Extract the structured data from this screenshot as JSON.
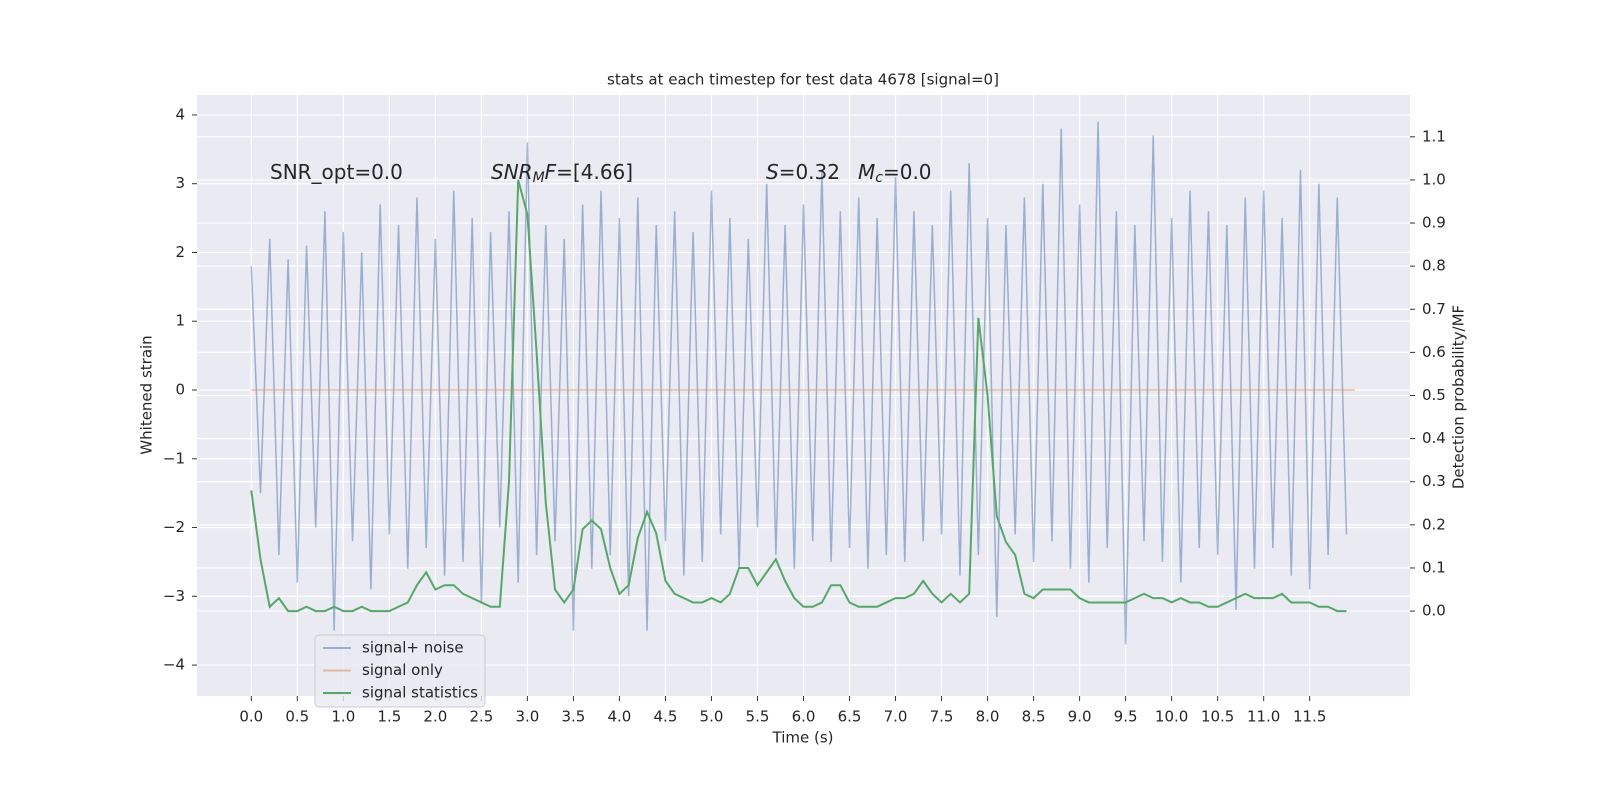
{
  "chart_data": {
    "type": "line",
    "title": "stats at each timestep for test data 4678 [signal=0]",
    "xlabel": "Time (s)",
    "ylabel": "Whitened strain",
    "y2label": "Detection probability/MF",
    "annotations": [
      [
        {
          "text": "SNR_opt=0.0"
        }
      ],
      [
        {
          "text": "SNR",
          "italic": true
        },
        {
          "text": "M",
          "italic": true,
          "sub": true
        },
        {
          "text": "F",
          "italic": true
        },
        {
          "text": "=[4.66]"
        }
      ],
      [
        {
          "text": "S",
          "italic": true
        },
        {
          "text": "=0.32"
        }
      ],
      [
        {
          "text": "M",
          "italic": true
        },
        {
          "text": "c",
          "italic": true,
          "sub": true
        },
        {
          "text": "=0.0"
        }
      ]
    ],
    "xlim": [
      -0.59,
      12.59
    ],
    "ylim": [
      -4.45,
      4.29
    ],
    "y2lim": [
      -0.197,
      1.197
    ],
    "xticks": [
      {
        "value": 0,
        "label": "0.0"
      },
      0.5,
      {
        "value": 1,
        "label": "1.0"
      },
      1.5,
      {
        "value": 2,
        "label": "2.0"
      },
      2.5,
      {
        "value": 3,
        "label": "3.0"
      },
      3.5,
      {
        "value": 4,
        "label": "4.0"
      },
      4.5,
      {
        "value": 5,
        "label": "5.0"
      },
      5.5,
      {
        "value": 6,
        "label": "6.0"
      },
      6.5,
      {
        "value": 7,
        "label": "7.0"
      },
      7.5,
      {
        "value": 8,
        "label": "8.0"
      },
      8.5,
      {
        "value": 9,
        "label": "9.0"
      },
      9.5,
      {
        "value": 10,
        "label": "10.0"
      },
      10.5,
      {
        "value": 11,
        "label": "11.0"
      },
      11.5
    ],
    "yticks": [
      {
        "value": -4,
        "label": "−4"
      },
      {
        "value": -3,
        "label": "−3"
      },
      {
        "value": -2,
        "label": "−2"
      },
      {
        "value": -1,
        "label": "−1"
      },
      0,
      1,
      2,
      3,
      4
    ],
    "y2ticks": [
      {
        "value": 0,
        "label": "0.0"
      },
      0.1,
      0.2,
      0.3,
      0.4,
      0.5,
      0.6,
      0.7,
      0.8,
      0.9,
      {
        "value": 1,
        "label": "1.0"
      },
      1.1
    ],
    "grid": true,
    "legend": "lower left",
    "series": [
      {
        "name": "signal+ noise",
        "color": "#4c72b0",
        "opacity": 0.5,
        "x": [
          0,
          0.1,
          0.2,
          0.3,
          0.4,
          0.5,
          0.6,
          0.7,
          0.8,
          0.9,
          1,
          1.1,
          1.2,
          1.3,
          1.4,
          1.5,
          1.6,
          1.7,
          1.8,
          1.9,
          2,
          2.1,
          2.2,
          2.3,
          2.4,
          2.5,
          2.6,
          2.7,
          2.8,
          2.9,
          3,
          3.1,
          3.2,
          3.3,
          3.4,
          3.5,
          3.6,
          3.7,
          3.8,
          3.9,
          4,
          4.1,
          4.2,
          4.3,
          4.4,
          4.5,
          4.6,
          4.7,
          4.8,
          4.9,
          5,
          5.1,
          5.2,
          5.3,
          5.4,
          5.5,
          5.6,
          5.7,
          5.8,
          5.9,
          6,
          6.1,
          6.2,
          6.3,
          6.4,
          6.5,
          6.6,
          6.7,
          6.8,
          6.9,
          7,
          7.1,
          7.2,
          7.3,
          7.4,
          7.5,
          7.6,
          7.7,
          7.8,
          7.9,
          8,
          8.1,
          8.2,
          8.3,
          8.4,
          8.5,
          8.6,
          8.7,
          8.8,
          8.9,
          9,
          9.1,
          9.2,
          9.3,
          9.4,
          9.5,
          9.6,
          9.7,
          9.8,
          9.9,
          10,
          10.1,
          10.2,
          10.3,
          10.4,
          10.5,
          10.6,
          10.7,
          10.8,
          10.9,
          11,
          11.1,
          11.2,
          11.3,
          11.4,
          11.5,
          11.6,
          11.7,
          11.8,
          11.9
        ],
        "values": [
          1.8,
          -1.5,
          2.2,
          -2.4,
          1.9,
          -2.8,
          2.1,
          -2.0,
          2.6,
          -3.5,
          2.3,
          -2.2,
          2.0,
          -2.9,
          2.7,
          -2.1,
          2.4,
          -2.6,
          2.8,
          -2.3,
          2.2,
          -2.7,
          2.9,
          -2.5,
          2.5,
          -3.1,
          2.3,
          -2.0,
          2.6,
          -2.8,
          3.6,
          -2.4,
          2.4,
          -2.2,
          2.2,
          -3.5,
          2.7,
          -2.6,
          2.9,
          -2.4,
          2.5,
          -3.0,
          2.8,
          -3.5,
          2.4,
          -2.2,
          2.6,
          -2.7,
          2.3,
          -2.5,
          2.9,
          -2.1,
          2.5,
          -2.6,
          2.2,
          -2.0,
          3.0,
          -2.4,
          2.4,
          -2.6,
          2.7,
          -2.2,
          3.2,
          -2.5,
          2.6,
          -2.3,
          2.8,
          -2.6,
          2.5,
          -2.4,
          3.1,
          -2.5,
          2.6,
          -2.2,
          2.4,
          -2.1,
          2.9,
          -2.7,
          3.3,
          -2.4,
          2.5,
          -3.3,
          2.4,
          -2.1,
          2.8,
          -2.5,
          3.0,
          -2.2,
          3.8,
          -2.6,
          2.7,
          -2.8,
          3.9,
          -2.3,
          2.6,
          -3.7,
          2.4,
          -2.2,
          3.7,
          -2.5,
          2.5,
          -2.8,
          2.9,
          -2.3,
          2.6,
          -2.4,
          2.4,
          -3.2,
          2.8,
          -2.6,
          2.9,
          -2.3,
          2.5,
          -2.7,
          3.2,
          -2.9,
          3.0,
          -2.4,
          2.8,
          -2.1
        ]
      },
      {
        "name": "signal only",
        "color": "#dd8452",
        "opacity": 0.5,
        "x": [
          0,
          11.99
        ],
        "values": [
          0,
          0
        ]
      },
      {
        "name": "signal statistics",
        "color": "#55a868",
        "opacity": 1,
        "axis": "y2",
        "x": [
          0,
          0.1,
          0.2,
          0.3,
          0.4,
          0.5,
          0.6,
          0.7,
          0.8,
          0.9,
          1,
          1.1,
          1.2,
          1.3,
          1.4,
          1.5,
          1.6,
          1.7,
          1.8,
          1.9,
          2,
          2.1,
          2.2,
          2.3,
          2.4,
          2.5,
          2.6,
          2.7,
          2.8,
          2.9,
          3,
          3.1,
          3.2,
          3.3,
          3.4,
          3.5,
          3.6,
          3.7,
          3.8,
          3.9,
          4,
          4.1,
          4.2,
          4.3,
          4.4,
          4.5,
          4.6,
          4.7,
          4.8,
          4.9,
          5,
          5.1,
          5.2,
          5.3,
          5.4,
          5.5,
          5.6,
          5.7,
          5.8,
          5.9,
          6,
          6.1,
          6.2,
          6.3,
          6.4,
          6.5,
          6.6,
          6.7,
          6.8,
          6.9,
          7,
          7.1,
          7.2,
          7.3,
          7.4,
          7.5,
          7.6,
          7.7,
          7.8,
          7.9,
          8,
          8.1,
          8.2,
          8.3,
          8.4,
          8.5,
          8.6,
          8.7,
          8.8,
          8.9,
          9,
          9.1,
          9.2,
          9.3,
          9.4,
          9.5,
          9.6,
          9.7,
          9.8,
          9.9,
          10,
          10.1,
          10.2,
          10.3,
          10.4,
          10.5,
          10.6,
          10.7,
          10.8,
          10.9,
          11,
          11.1,
          11.2,
          11.3,
          11.4,
          11.5,
          11.6,
          11.7,
          11.8,
          11.9
        ],
        "values": [
          0.28,
          0.12,
          0.01,
          0.03,
          0.0,
          0.0,
          0.01,
          0.0,
          0.0,
          0.01,
          0.0,
          0.0,
          0.01,
          0.0,
          0.0,
          0.0,
          0.01,
          0.02,
          0.06,
          0.09,
          0.05,
          0.06,
          0.06,
          0.04,
          0.03,
          0.02,
          0.01,
          0.01,
          0.3,
          1.0,
          0.92,
          0.6,
          0.25,
          0.05,
          0.02,
          0.05,
          0.19,
          0.21,
          0.19,
          0.1,
          0.04,
          0.06,
          0.17,
          0.23,
          0.18,
          0.07,
          0.04,
          0.03,
          0.02,
          0.02,
          0.03,
          0.02,
          0.04,
          0.1,
          0.1,
          0.06,
          0.09,
          0.12,
          0.07,
          0.03,
          0.01,
          0.01,
          0.02,
          0.06,
          0.06,
          0.02,
          0.01,
          0.01,
          0.01,
          0.02,
          0.03,
          0.03,
          0.04,
          0.07,
          0.04,
          0.02,
          0.04,
          0.02,
          0.04,
          0.68,
          0.5,
          0.22,
          0.16,
          0.13,
          0.04,
          0.03,
          0.05,
          0.05,
          0.05,
          0.05,
          0.03,
          0.02,
          0.02,
          0.02,
          0.02,
          0.02,
          0.03,
          0.04,
          0.03,
          0.03,
          0.02,
          0.03,
          0.02,
          0.02,
          0.01,
          0.01,
          0.02,
          0.03,
          0.04,
          0.03,
          0.03,
          0.03,
          0.04,
          0.02,
          0.02,
          0.02,
          0.01,
          0.01,
          0.0,
          0.0
        ]
      }
    ]
  }
}
